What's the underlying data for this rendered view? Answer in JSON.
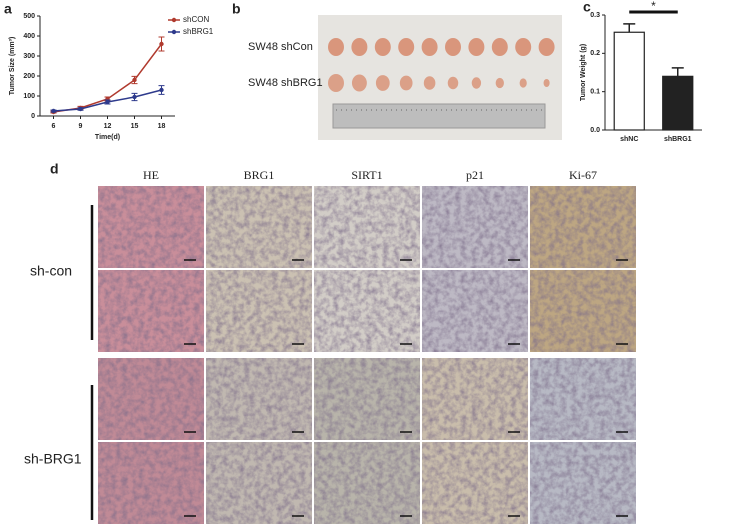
{
  "chart_data": [
    {
      "type": "line",
      "x_label": "Time(d)",
      "y_label": "Tumor Size (mm³)",
      "x": [
        6,
        9,
        12,
        15,
        18
      ],
      "xlim": [
        4.5,
        19.5
      ],
      "xticks": [
        6,
        9,
        12,
        15,
        18
      ],
      "ylim": [
        0,
        500
      ],
      "yticks": [
        0,
        100,
        200,
        300,
        400,
        500
      ],
      "legend": "upper right",
      "series": [
        {
          "name": "shCON",
          "color": "#b03a2e",
          "values": [
            20,
            40,
            85,
            180,
            360
          ],
          "errors": [
            5,
            8,
            10,
            18,
            35
          ]
        },
        {
          "name": "shBRG1",
          "color": "#2e3a8c",
          "values": [
            25,
            35,
            70,
            95,
            130
          ],
          "errors": [
            5,
            6,
            10,
            18,
            22
          ]
        }
      ]
    },
    {
      "type": "bar",
      "y_label": "Tumor Weight (g)",
      "categories": [
        "shNC",
        "shBRG1"
      ],
      "values": [
        0.255,
        0.14
      ],
      "errors": [
        0.022,
        0.022
      ],
      "colors": [
        "#ffffff",
        "#222222"
      ],
      "ylim": [
        0,
        0.3
      ],
      "yticks": [
        {
          "value": 0,
          "label": "0.0"
        },
        0.1,
        0.2,
        0.3
      ],
      "annotation": "*"
    }
  ],
  "panel_labels": [
    "a",
    "b",
    "c",
    "d"
  ],
  "photo": {
    "labels": [
      "SW48 shCon",
      "SW48 shBRG1"
    ]
  },
  "histology": {
    "columns": [
      "HE",
      "BRG1",
      "SIRT1",
      "p21",
      "Ki-67"
    ],
    "rows": [
      "sh-con",
      "sh-BRG1"
    ]
  }
}
